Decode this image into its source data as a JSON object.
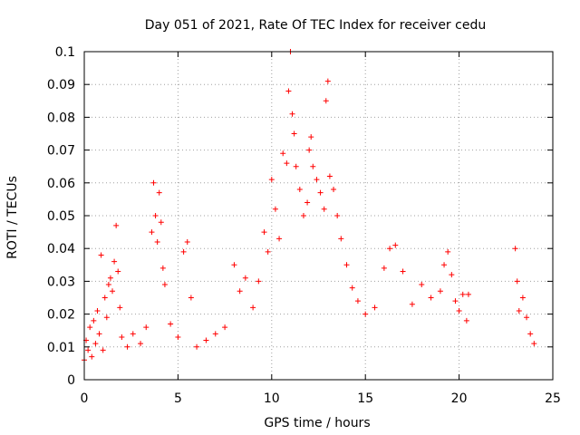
{
  "chart_data": {
    "type": "scatter",
    "title": "Day 051 of 2021, Rate Of TEC Index for receiver cedu",
    "xlabel": "GPS time / hours",
    "ylabel": "ROTI / TECUs",
    "xlim": [
      0,
      25
    ],
    "ylim": [
      0,
      0.1
    ],
    "x_ticks": [
      "0",
      "5",
      "10",
      "15",
      "20",
      "25"
    ],
    "x_tick_values": [
      0,
      5,
      10,
      15,
      20,
      25
    ],
    "y_ticks": [
      "0",
      "0.01",
      "0.02",
      "0.03",
      "0.04",
      "0.05",
      "0.06",
      "0.07",
      "0.08",
      "0.09",
      "0.1"
    ],
    "y_tick_values": [
      0,
      0.01,
      0.02,
      0.03,
      0.04,
      0.05,
      0.06,
      0.07,
      0.08,
      0.09,
      0.1
    ],
    "grid": true,
    "marker": "plus",
    "marker_color": "#ff0000",
    "series": [
      {
        "points": [
          [
            0.0,
            0.006
          ],
          [
            0.1,
            0.012
          ],
          [
            0.2,
            0.009
          ],
          [
            0.3,
            0.016
          ],
          [
            0.4,
            0.007
          ],
          [
            0.5,
            0.018
          ],
          [
            0.6,
            0.011
          ],
          [
            0.7,
            0.021
          ],
          [
            0.8,
            0.014
          ],
          [
            0.9,
            0.038
          ],
          [
            1.0,
            0.009
          ],
          [
            1.1,
            0.025
          ],
          [
            1.2,
            0.019
          ],
          [
            1.3,
            0.029
          ],
          [
            1.4,
            0.031
          ],
          [
            1.5,
            0.027
          ],
          [
            1.6,
            0.036
          ],
          [
            1.7,
            0.047
          ],
          [
            1.8,
            0.033
          ],
          [
            1.9,
            0.022
          ],
          [
            2.0,
            0.013
          ],
          [
            2.3,
            0.01
          ],
          [
            2.6,
            0.014
          ],
          [
            3.0,
            0.011
          ],
          [
            3.3,
            0.016
          ],
          [
            3.6,
            0.045
          ],
          [
            3.7,
            0.06
          ],
          [
            3.8,
            0.05
          ],
          [
            3.9,
            0.042
          ],
          [
            4.0,
            0.057
          ],
          [
            4.1,
            0.048
          ],
          [
            4.2,
            0.034
          ],
          [
            4.3,
            0.029
          ],
          [
            4.6,
            0.017
          ],
          [
            5.0,
            0.013
          ],
          [
            5.3,
            0.039
          ],
          [
            5.5,
            0.042
          ],
          [
            5.7,
            0.025
          ],
          [
            6.0,
            0.01
          ],
          [
            6.5,
            0.012
          ],
          [
            7.0,
            0.014
          ],
          [
            7.5,
            0.016
          ],
          [
            8.0,
            0.035
          ],
          [
            8.3,
            0.027
          ],
          [
            8.6,
            0.031
          ],
          [
            9.0,
            0.022
          ],
          [
            9.3,
            0.03
          ],
          [
            9.6,
            0.045
          ],
          [
            9.8,
            0.039
          ],
          [
            10.0,
            0.061
          ],
          [
            10.2,
            0.052
          ],
          [
            10.4,
            0.043
          ],
          [
            10.6,
            0.069
          ],
          [
            10.8,
            0.066
          ],
          [
            10.9,
            0.088
          ],
          [
            11.0,
            0.1
          ],
          [
            11.1,
            0.081
          ],
          [
            11.2,
            0.075
          ],
          [
            11.3,
            0.065
          ],
          [
            11.5,
            0.058
          ],
          [
            11.7,
            0.05
          ],
          [
            11.9,
            0.054
          ],
          [
            12.0,
            0.07
          ],
          [
            12.1,
            0.074
          ],
          [
            12.2,
            0.065
          ],
          [
            12.4,
            0.061
          ],
          [
            12.6,
            0.057
          ],
          [
            12.8,
            0.052
          ],
          [
            12.9,
            0.085
          ],
          [
            13.0,
            0.091
          ],
          [
            13.1,
            0.062
          ],
          [
            13.3,
            0.058
          ],
          [
            13.5,
            0.05
          ],
          [
            13.7,
            0.043
          ],
          [
            14.0,
            0.035
          ],
          [
            14.3,
            0.028
          ],
          [
            14.6,
            0.024
          ],
          [
            15.0,
            0.02
          ],
          [
            15.5,
            0.022
          ],
          [
            16.0,
            0.034
          ],
          [
            16.3,
            0.04
          ],
          [
            16.6,
            0.041
          ],
          [
            17.0,
            0.033
          ],
          [
            17.5,
            0.023
          ],
          [
            18.0,
            0.029
          ],
          [
            18.5,
            0.025
          ],
          [
            19.0,
            0.027
          ],
          [
            19.2,
            0.035
          ],
          [
            19.4,
            0.039
          ],
          [
            19.6,
            0.032
          ],
          [
            19.8,
            0.024
          ],
          [
            20.0,
            0.021
          ],
          [
            20.2,
            0.026
          ],
          [
            20.4,
            0.018
          ],
          [
            20.5,
            0.026
          ],
          [
            23.0,
            0.04
          ],
          [
            23.1,
            0.03
          ],
          [
            23.2,
            0.021
          ],
          [
            23.4,
            0.025
          ],
          [
            23.6,
            0.019
          ],
          [
            23.8,
            0.014
          ],
          [
            24.0,
            0.011
          ]
        ]
      }
    ]
  }
}
